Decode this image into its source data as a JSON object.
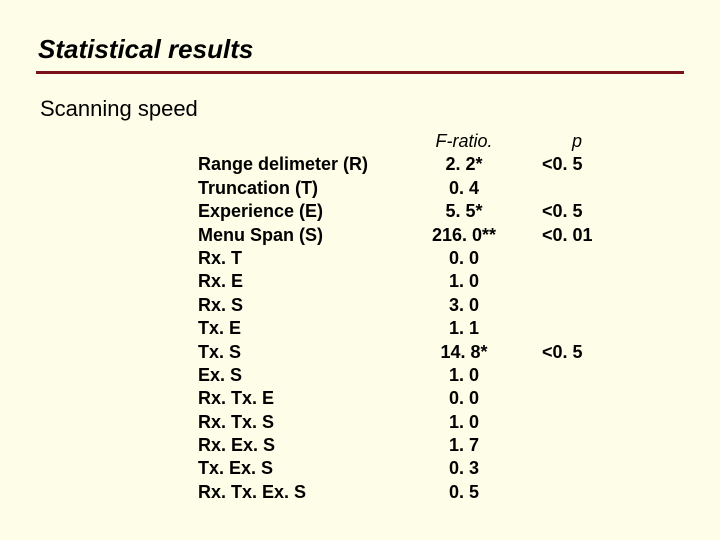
{
  "colors": {
    "background": "#fefde8",
    "rule": "#7a1018",
    "text": "#000000"
  },
  "typography": {
    "title_fontsize": 26,
    "subtitle_fontsize": 22,
    "body_fontsize": 18,
    "title_font": "Verdana",
    "body_font": "Arial"
  },
  "title": "Statistical results",
  "subtitle": "Scanning speed",
  "table": {
    "headers": {
      "factor": "",
      "fratio": "F-ratio.",
      "p": "p"
    },
    "rows": [
      {
        "factor": "Range delimeter (R)",
        "fratio": "2. 2*",
        "p": "<0. 5"
      },
      {
        "factor": "Truncation (T)",
        "fratio": "0. 4",
        "p": ""
      },
      {
        "factor": "Experience (E)",
        "fratio": "5. 5*",
        "p": "<0. 5"
      },
      {
        "factor": "Menu Span (S)",
        "fratio": "216. 0**",
        "p": "<0. 01"
      },
      {
        "factor": "Rx. T",
        "fratio": "0. 0",
        "p": ""
      },
      {
        "factor": "Rx. E",
        "fratio": "1. 0",
        "p": ""
      },
      {
        "factor": "Rx. S",
        "fratio": "3. 0",
        "p": ""
      },
      {
        "factor": "Tx. E",
        "fratio": "1. 1",
        "p": ""
      },
      {
        "factor": "Tx. S",
        "fratio": "14. 8*",
        "p": "<0. 5"
      },
      {
        "factor": "Ex. S",
        "fratio": "1. 0",
        "p": ""
      },
      {
        "factor": "Rx. Tx. E",
        "fratio": "0. 0",
        "p": ""
      },
      {
        "factor": "Rx. Tx. S",
        "fratio": "1. 0",
        "p": ""
      },
      {
        "factor": "Rx. Ex. S",
        "fratio": "1. 7",
        "p": ""
      },
      {
        "factor": "Tx. Ex. S",
        "fratio": "0. 3",
        "p": ""
      },
      {
        "factor": "Rx. Tx. Ex. S",
        "fratio": "0. 5",
        "p": ""
      }
    ]
  }
}
